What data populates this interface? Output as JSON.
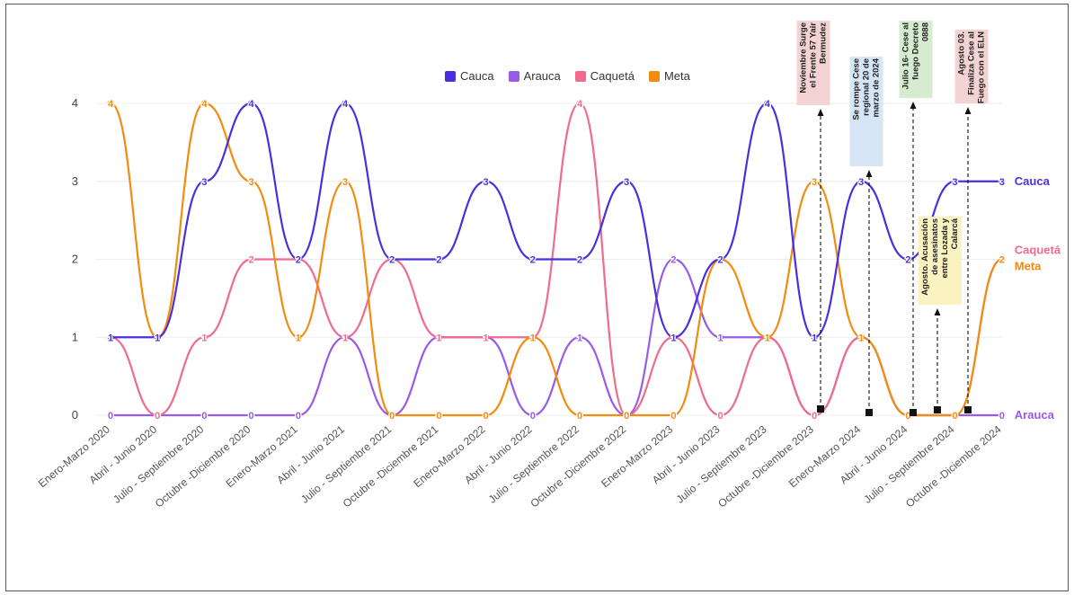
{
  "chart_data": {
    "type": "line",
    "categories": [
      "Enero-Marzo 2020",
      "Abril - Junio 2020",
      "Julio - Septiembre 2020",
      "Octubre -Diciembre 2020",
      "Enero-Marzo 2021",
      "Abril - Junio 2021",
      "Julio - Septiembre 2021",
      "Octubre -Diciembre 2021",
      "Enero-Marzo 2022",
      "Abril - Junio 2022",
      "Julio - Septiembre 2022",
      "Octubre -Diciembre 2022",
      "Enero-Marzo 2023",
      "Abril - Junio 2023",
      "Julio - Septiembre 2023",
      "Octubre -Diciembre 2023",
      "Enero-Marzo 2024",
      "Abril - Junio 2024",
      "Julio - Septiembre 2024",
      "Octubre -Diciembre 2024"
    ],
    "ylim": [
      0,
      4
    ],
    "yticks": [
      "0",
      "1",
      "2",
      "3",
      "4"
    ],
    "grid": true,
    "legend_position": "top-center",
    "series": [
      {
        "name": "Cauca",
        "color": "#4a2fe0",
        "end_label": "Cauca",
        "values": [
          1,
          1,
          3,
          4,
          2,
          4,
          2,
          2,
          3,
          2,
          2,
          3,
          1,
          2,
          4,
          1,
          3,
          2,
          3,
          3
        ]
      },
      {
        "name": "Arauca",
        "color": "#9a5ae8",
        "end_label": "Arauca",
        "values": [
          0,
          0,
          0,
          0,
          0,
          1,
          0,
          1,
          1,
          0,
          1,
          0,
          2,
          1,
          1,
          0,
          1,
          0,
          0,
          0
        ]
      },
      {
        "name": "Caquetá",
        "color": "#f06b8e",
        "end_label": "Caquetá",
        "values": [
          1,
          0,
          1,
          2,
          2,
          1,
          2,
          1,
          1,
          1,
          4,
          0,
          1,
          0,
          1,
          0,
          1,
          0,
          0,
          2
        ]
      },
      {
        "name": "Meta",
        "color": "#f38b0f",
        "end_label": "Meta",
        "values": [
          4,
          1,
          4,
          3,
          1,
          3,
          0,
          0,
          0,
          1,
          0,
          0,
          0,
          2,
          1,
          3,
          1,
          0,
          0,
          2
        ]
      }
    ],
    "annotations": [
      {
        "text": "Noviembre Surge el Frente 57 Yair Bermudez",
        "bg": "#f4d3d3",
        "after_category": 15
      },
      {
        "text": "Se rompe Cese regional 20 de marzo de 2024",
        "bg": "#d7e6f6",
        "after_category": 16
      },
      {
        "text": "Julio 16- Cese al fuego Decreto 0888",
        "bg": "#d6ecd0",
        "after_category": 17
      },
      {
        "text": "Agosto. Acusación de asesinatos entre Lozada y Calarcá",
        "bg": "#fbf2c2",
        "after_category": 17
      },
      {
        "text": "Agosto 03. Finaliza Cese al Fuego con el ELN",
        "bg": "#f4d3d3",
        "after_category": 18
      }
    ]
  }
}
